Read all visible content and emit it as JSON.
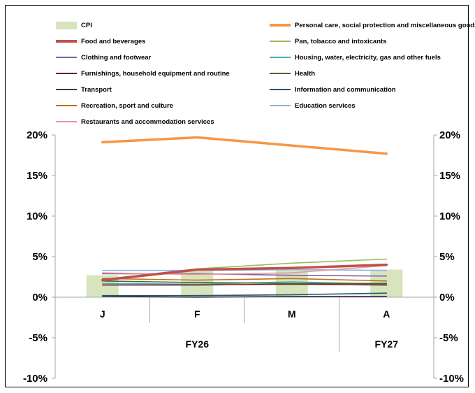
{
  "chart_data": {
    "type": "bar+line",
    "categories": [
      "J",
      "F",
      "M",
      "A"
    ],
    "groups": [
      {
        "label": "FY26",
        "categories": [
          "J",
          "F",
          "M"
        ]
      },
      {
        "label": "FY27",
        "categories": [
          "A"
        ]
      }
    ],
    "y_ticks": [
      "20%",
      "15%",
      "10%",
      "5%",
      "0%",
      "-5%",
      "-10%"
    ],
    "ylim": [
      -10,
      20
    ],
    "bar_series": {
      "name": "CPI",
      "color": "#d7e4bd",
      "values": [
        2.7,
        3.2,
        3.4,
        3.4
      ]
    },
    "series": [
      {
        "name": "Personal care, social protection and miscellaneous goods",
        "color": "#f79646",
        "width": 3.5,
        "values": [
          19.1,
          19.7,
          18.7,
          17.7
        ]
      },
      {
        "name": "Food and beverages",
        "color": "#c0504d",
        "width": 3.5,
        "values": [
          2.1,
          3.4,
          3.6,
          4.0
        ]
      },
      {
        "name": "Pan, tobacco and intoxicants",
        "color": "#9bbb59",
        "width": 1.6,
        "values": [
          2.2,
          3.5,
          4.2,
          4.7
        ]
      },
      {
        "name": "Clothing and footwear",
        "color": "#8064a2",
        "width": 1.6,
        "values": [
          2.9,
          2.9,
          2.7,
          2.6
        ]
      },
      {
        "name": "Housing, water, electricity, gas and other fuels",
        "color": "#4bacc6",
        "width": 1.6,
        "values": [
          1.7,
          1.6,
          1.9,
          1.6
        ]
      },
      {
        "name": "Furnishings, household equipment and routine",
        "color": "#632523",
        "width": 1.6,
        "values": [
          1.5,
          1.5,
          1.6,
          1.5
        ]
      },
      {
        "name": "Health",
        "color": "#4f6228",
        "width": 1.6,
        "values": [
          2.0,
          1.8,
          1.7,
          1.7
        ]
      },
      {
        "name": "Transport",
        "color": "#403151",
        "width": 1.6,
        "values": [
          0.1,
          0.0,
          0.1,
          0.1
        ]
      },
      {
        "name": "Information and communication",
        "color": "#215968",
        "width": 1.6,
        "values": [
          0.2,
          0.2,
          0.3,
          0.5
        ]
      },
      {
        "name": "Recreation, sport and culture",
        "color": "#c0701c",
        "width": 1.6,
        "values": [
          2.3,
          2.1,
          2.3,
          2.0
        ]
      },
      {
        "name": "Education services",
        "color": "#8eb4e3",
        "width": 1.6,
        "values": [
          3.3,
          3.3,
          3.4,
          3.3
        ]
      },
      {
        "name": "Restaurants and accommodation services",
        "color": "#e6969b",
        "width": 1.6,
        "values": [
          3.0,
          2.8,
          3.0,
          3.9
        ]
      }
    ]
  }
}
